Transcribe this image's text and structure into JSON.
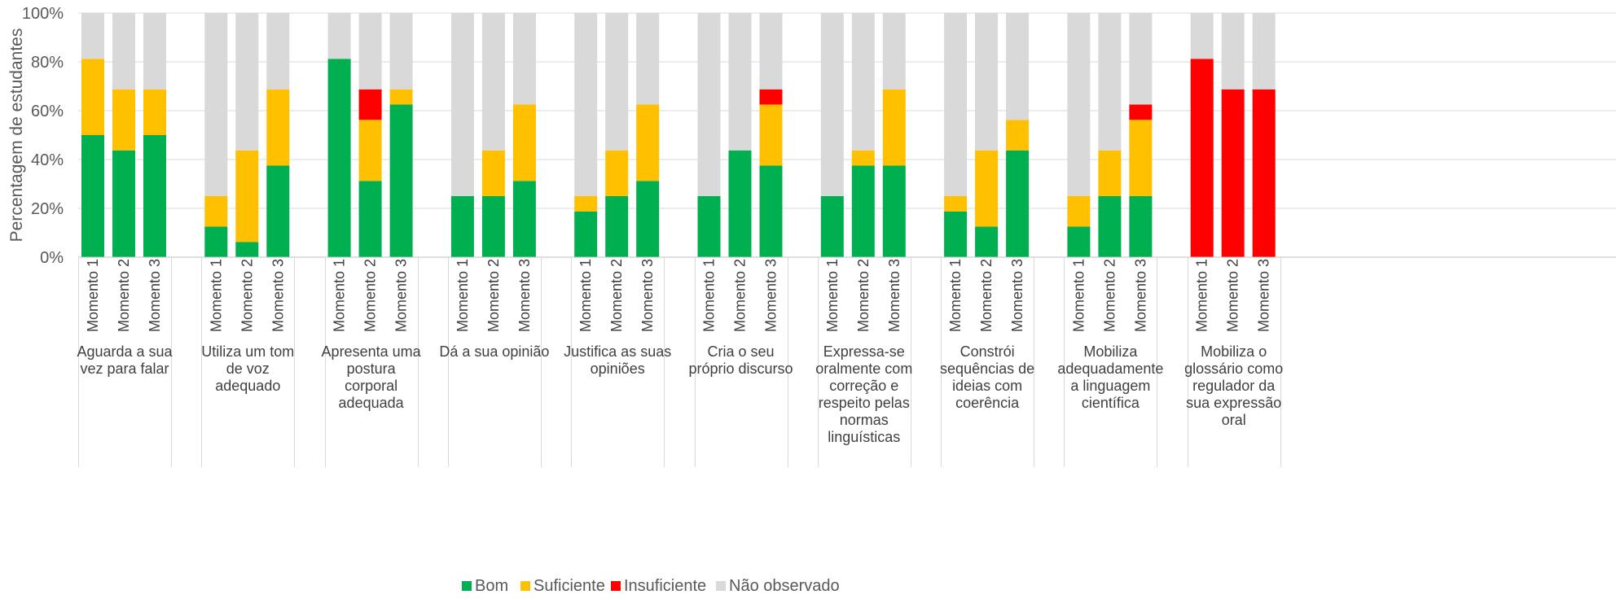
{
  "chart_data": {
    "type": "bar",
    "stacked": true,
    "ylabel": "Percentagem de estudantes",
    "ylim": [
      0,
      100
    ],
    "yticks": [
      "0%",
      "20%",
      "40%",
      "60%",
      "80%",
      "100%"
    ],
    "grid": true,
    "legend_position": "bottom",
    "moments": [
      "Momento 1",
      "Momento 2",
      "Momento 3"
    ],
    "groups": [
      {
        "label": [
          "Aguarda a sua",
          "vez para falar"
        ]
      },
      {
        "label": [
          "Utiliza um tom",
          "de voz",
          "adequado"
        ]
      },
      {
        "label": [
          "Apresenta uma",
          "postura",
          "corporal",
          "adequada"
        ]
      },
      {
        "label": [
          "Dá a sua opinião"
        ]
      },
      {
        "label": [
          "Justifica as suas",
          "opiniões"
        ]
      },
      {
        "label": [
          "Cria o seu",
          "próprio discurso"
        ]
      },
      {
        "label": [
          "Expressa-se",
          "oralmente com",
          "correção e",
          "respeito pelas",
          "normas",
          "linguísticas"
        ]
      },
      {
        "label": [
          "Constrói",
          "sequências de",
          "ideias com",
          "coerência"
        ]
      },
      {
        "label": [
          "Mobiliza",
          "adequadamente",
          "a linguagem",
          "científica"
        ]
      },
      {
        "label": [
          "Mobiliza o",
          "glossário como",
          "regulador da",
          "sua expressão",
          "oral"
        ]
      }
    ],
    "series": [
      {
        "name": "Bom",
        "color": "#00b050",
        "values": [
          [
            50,
            43.75,
            50
          ],
          [
            12.5,
            6.25,
            37.5
          ],
          [
            81.25,
            31.25,
            62.5
          ],
          [
            25,
            25,
            31.25
          ],
          [
            18.75,
            25,
            31.25
          ],
          [
            25,
            43.75,
            37.5
          ],
          [
            25,
            37.5,
            37.5
          ],
          [
            18.75,
            12.5,
            43.75
          ],
          [
            12.5,
            25,
            25
          ],
          [
            0,
            0,
            0
          ]
        ]
      },
      {
        "name": "Suficiente",
        "color": "#ffc000",
        "values": [
          [
            31.25,
            25,
            18.75
          ],
          [
            12.5,
            37.5,
            31.25
          ],
          [
            0,
            25,
            6.25
          ],
          [
            0,
            18.75,
            31.25
          ],
          [
            6.25,
            18.75,
            31.25
          ],
          [
            0,
            0,
            25
          ],
          [
            0,
            6.25,
            31.25
          ],
          [
            6.25,
            31.25,
            12.5
          ],
          [
            12.5,
            18.75,
            31.25
          ],
          [
            0,
            0,
            0
          ]
        ]
      },
      {
        "name": "Insuficiente",
        "color": "#ff0000",
        "values": [
          [
            0,
            0,
            0
          ],
          [
            0,
            0,
            0
          ],
          [
            0,
            12.5,
            0
          ],
          [
            0,
            0,
            0
          ],
          [
            0,
            0,
            0
          ],
          [
            0,
            0,
            6.25
          ],
          [
            0,
            0,
            0
          ],
          [
            0,
            0,
            0
          ],
          [
            0,
            0,
            6.25
          ],
          [
            81.25,
            68.75,
            68.75
          ]
        ]
      },
      {
        "name": "Não observado",
        "color": "#d9d9d9",
        "values": [
          [
            18.75,
            31.25,
            31.25
          ],
          [
            75,
            56.25,
            31.25
          ],
          [
            18.75,
            31.25,
            31.25
          ],
          [
            75,
            56.25,
            37.5
          ],
          [
            75,
            56.25,
            37.5
          ],
          [
            75,
            56.25,
            31.25
          ],
          [
            75,
            56.25,
            31.25
          ],
          [
            75,
            56.25,
            43.75
          ],
          [
            75,
            56.25,
            37.5
          ],
          [
            18.75,
            31.25,
            31.25
          ]
        ]
      }
    ]
  }
}
